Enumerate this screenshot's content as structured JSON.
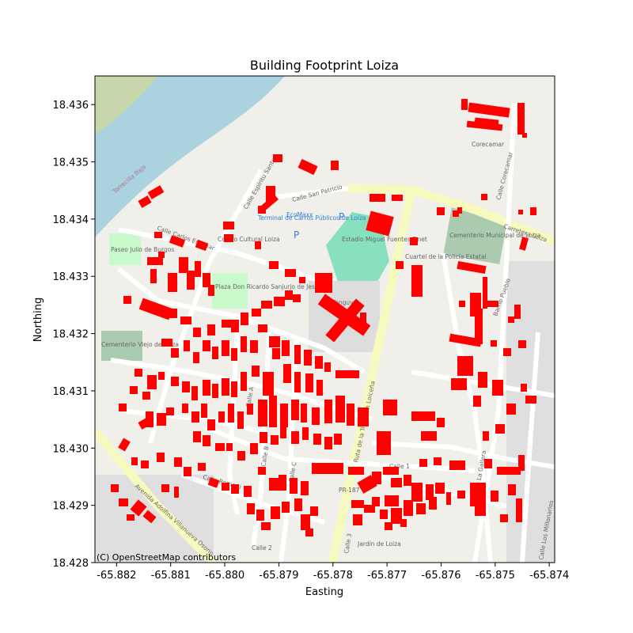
{
  "chart_data": {
    "type": "map",
    "title": "Building Footprint Loiza",
    "xlabel": "Easting",
    "ylabel": "Northing",
    "xlim": [
      -65.8824,
      -65.8739
    ],
    "ylim": [
      18.428,
      18.4365
    ],
    "x_ticks": [
      "-65.882",
      "-65.881",
      "-65.880",
      "-65.879",
      "-65.878",
      "-65.877",
      "-65.876",
      "-65.875",
      "-65.874"
    ],
    "x_tick_values": [
      -65.882,
      -65.881,
      -65.88,
      -65.879,
      -65.878,
      -65.877,
      -65.876,
      -65.875,
      -65.874
    ],
    "y_ticks": [
      "18.428",
      "18.429",
      "18.430",
      "18.431",
      "18.432",
      "18.433",
      "18.434",
      "18.435",
      "18.436"
    ],
    "y_tick_values": [
      18.428,
      18.429,
      18.43,
      18.431,
      18.432,
      18.433,
      18.434,
      18.435,
      18.436
    ],
    "attribution": "(C) OpenStreetMap contributors",
    "footprint_color": "#ff0000",
    "basemap_labels": [
      "Calle Carlos Escobar",
      "Calle Espíritu Santo",
      "Calle San Patricio",
      "Carretera Loiza",
      "Corecamar",
      "Calle Corecamar",
      "Estadio Miguel Fuentes Pinet",
      "Cuartel de la Policía Estatal",
      "Cementerio Municipal de Loiza",
      "Paseo Julio de Burgos",
      "Cementerio Viejo de Loiza",
      "Plaza Don Ricardo Sanjurjo de Jesús",
      "Ruta de la Tradición Loiceña",
      "Calle 1",
      "Calle 2",
      "Calle 3",
      "Calle A",
      "Calle B",
      "Calle C",
      "Calle Romero",
      "Calle La Gallera",
      "Calle Los Millonarios",
      "PR-187",
      "Jardín de Loiza",
      "Avenida Adolfina Villanueva Osorio",
      "Barrio Pueblo",
      "Centro Cultural Loiza",
      "Terminal de Carros Públicos de Loíza",
      "EcoMaxx",
      "Torrecilla Baja",
      "Tonguyu"
    ]
  }
}
